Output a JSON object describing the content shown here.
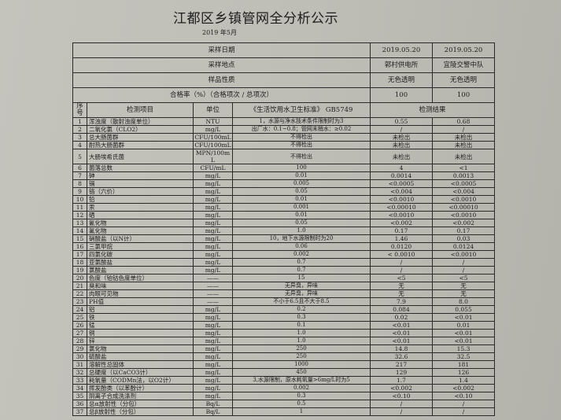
{
  "title": "江都区乡镇管网全分析公示",
  "subtitle": "2019 年5月",
  "meta": [
    {
      "label": "采样日期",
      "v1": "2019.05.20",
      "v2": "2019.05.20"
    },
    {
      "label": "采样地点",
      "v1": "郭村供电所",
      "v2": "宜陵交警中队"
    },
    {
      "label": "样品性质",
      "v1": "无色透明",
      "v2": "无色透明"
    },
    {
      "label": "合格率（%）（合格项次 / 总项次）",
      "v1": "100",
      "v2": "100"
    }
  ],
  "columns": {
    "no": "序号",
    "item": "检测项目",
    "unit": "单位",
    "standard": "《生活饮用水卫生标准》 GB5749",
    "result": "检测结果"
  },
  "rows": [
    [
      "1",
      "浑浊度（散射浊度单位）",
      "NTU",
      "1，水源与净水技术条件限制时为3",
      "0.55",
      "0.68"
    ],
    [
      "2",
      "二氧化氯（CLO2）",
      "mg/L",
      "出厂水：0.1~0.8；管网末梢水：≥0.02",
      "/",
      "/"
    ],
    [
      "3",
      "总大肠菌群",
      "CFU/100mL",
      "不得检出",
      "未检出",
      "未检出"
    ],
    [
      "4",
      "耐热大肠菌群",
      "CFU/100mL",
      "不得检出",
      "未检出",
      "未检出"
    ],
    [
      "5",
      "大肠埃希氏菌",
      "MPN/100mL",
      "不得检出",
      "未检出",
      "未检出"
    ],
    [
      "6",
      "菌落总数",
      "CFU/mL",
      "100",
      "4",
      "<1"
    ],
    [
      "7",
      "砷",
      "mg/L",
      "0.01",
      "0.0014",
      "0.0013"
    ],
    [
      "8",
      "镉",
      "mg/L",
      "0.005",
      "<0.0005",
      "<0.0005"
    ],
    [
      "9",
      "铬（六价）",
      "mg/L",
      "0.05",
      "<0.004",
      "<0.004"
    ],
    [
      "10",
      "铅",
      "mg/L",
      "0.01",
      "<0.0010",
      "<0.0010"
    ],
    [
      "11",
      "汞",
      "mg/L",
      "0.001",
      "<0.00010",
      "<0.00010"
    ],
    [
      "12",
      "硒",
      "mg/L",
      "0.01",
      "<0.0010",
      "<0.0010"
    ],
    [
      "13",
      "氰化物",
      "mg/L",
      "0.05",
      "<0.002",
      "<0.002"
    ],
    [
      "14",
      "氟化物",
      "mg/L",
      "1.0",
      "0.17",
      "0.17"
    ],
    [
      "15",
      "硝酸盐（以N计）",
      "mg/L",
      "10，地下水源限制时为20",
      "1.46",
      "0.03"
    ],
    [
      "16",
      "三氯甲烷",
      "mg/L",
      "0.06",
      "0.0120",
      "0.0124"
    ],
    [
      "17",
      "四氯化碳",
      "mg/L",
      "0.002",
      "< 0.0010",
      "<0.0010"
    ],
    [
      "18",
      "亚氯酸盐",
      "mg/L",
      "0.7",
      "/",
      "/"
    ],
    [
      "19",
      "氯酸盐",
      "mg/L",
      "0.7",
      "/",
      "/"
    ],
    [
      "20",
      "色度（铂钴色度单位）",
      "——",
      "15",
      "<5",
      "<5"
    ],
    [
      "21",
      "臭和味",
      "——",
      "无异臭，异味",
      "无",
      "无"
    ],
    [
      "22",
      "肉眼可见物",
      "——",
      "无异臭，异味",
      "无",
      "无"
    ],
    [
      "23",
      "PH值",
      "——",
      "不小于6.5且不大于8.5",
      "7.9",
      "8.0"
    ],
    [
      "24",
      "铝",
      "mg/L",
      "0.2",
      "0.084",
      "0.055"
    ],
    [
      "25",
      "铁",
      "mg/L",
      "0.3",
      "0.02",
      "<0.01"
    ],
    [
      "26",
      "锰",
      "mg/L",
      "0.1",
      "<0.01",
      "0.01"
    ],
    [
      "27",
      "铜",
      "mg/L",
      "1.0",
      "<0.01",
      "<0.01"
    ],
    [
      "28",
      "锌",
      "mg/L",
      "1.0",
      "<0.01",
      "<0.01"
    ],
    [
      "29",
      "氯化物",
      "mg/L",
      "250",
      "14.8",
      "15.3"
    ],
    [
      "30",
      "硫酸盐",
      "mg/L",
      "250",
      "32.6",
      "32.5"
    ],
    [
      "31",
      "溶解性总固体",
      "mg/L",
      "1000",
      "217",
      "181"
    ],
    [
      "32",
      "总硬度（以CaCO3计）",
      "mg/L",
      "450",
      "129",
      "126"
    ],
    [
      "33",
      "耗氧量（CODMn法，以O2计）",
      "mg/L",
      "3,水源限制，原水耗氧量>6mg/L时为5",
      "1.7",
      "1.4"
    ],
    [
      "34",
      "挥发酚类（以苯酚计）",
      "mg/L",
      "0.002",
      "<0.002",
      "<0.002"
    ],
    [
      "35",
      "阴离子合成洗涤剂",
      "mg/L",
      "0.3",
      "<0.10",
      "<0.10"
    ],
    [
      "36",
      "总α放射性（分包）",
      "Bq/L",
      "0.5",
      "/",
      "/"
    ],
    [
      "37",
      "总β放射性（分包）",
      "Bq/L",
      "1",
      "/",
      "/"
    ]
  ]
}
